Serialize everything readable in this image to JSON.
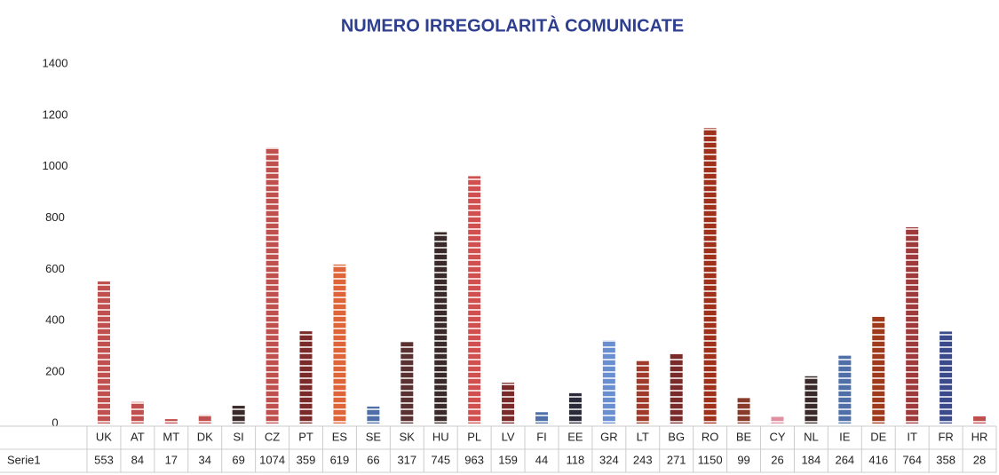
{
  "chart_data": {
    "type": "bar",
    "title": "NUMERO IRREGOLARITÀ COMUNICATE",
    "categories": [
      "UK",
      "AT",
      "MT",
      "DK",
      "SI",
      "CZ",
      "PT",
      "ES",
      "SE",
      "SK",
      "HU",
      "PL",
      "LV",
      "FI",
      "EE",
      "GR",
      "LT",
      "BG",
      "RO",
      "BE",
      "CY",
      "NL",
      "IE",
      "DE",
      "IT",
      "FR",
      "HR"
    ],
    "series": [
      {
        "name": "Serie1",
        "values": [
          553,
          84,
          17,
          34,
          69,
          1074,
          359,
          619,
          66,
          317,
          745,
          963,
          159,
          44,
          118,
          324,
          243,
          271,
          1150,
          99,
          26,
          184,
          264,
          416,
          764,
          358,
          28
        ],
        "colors": [
          "#c0504d",
          "#c0504d",
          "#c0504d",
          "#c0504d",
          "#3a2a2a",
          "#c0504d",
          "#7b2a2a",
          "#e0643a",
          "#4f6fa8",
          "#5a3030",
          "#3a2a2a",
          "#d05050",
          "#7b2a2a",
          "#4f6fa8",
          "#2a2a3a",
          "#6a8fd0",
          "#a03a2a",
          "#7b2a2a",
          "#a0301a",
          "#8a3a2a",
          "#e090a0",
          "#3a2a2a",
          "#4f6fa8",
          "#a03a1a",
          "#a03a3a",
          "#3a4a8a",
          "#c0504d"
        ]
      }
    ],
    "ylim": [
      0,
      1400
    ],
    "yticks": [
      0,
      200,
      400,
      600,
      800,
      1000,
      1200,
      1400
    ],
    "grid": false
  }
}
